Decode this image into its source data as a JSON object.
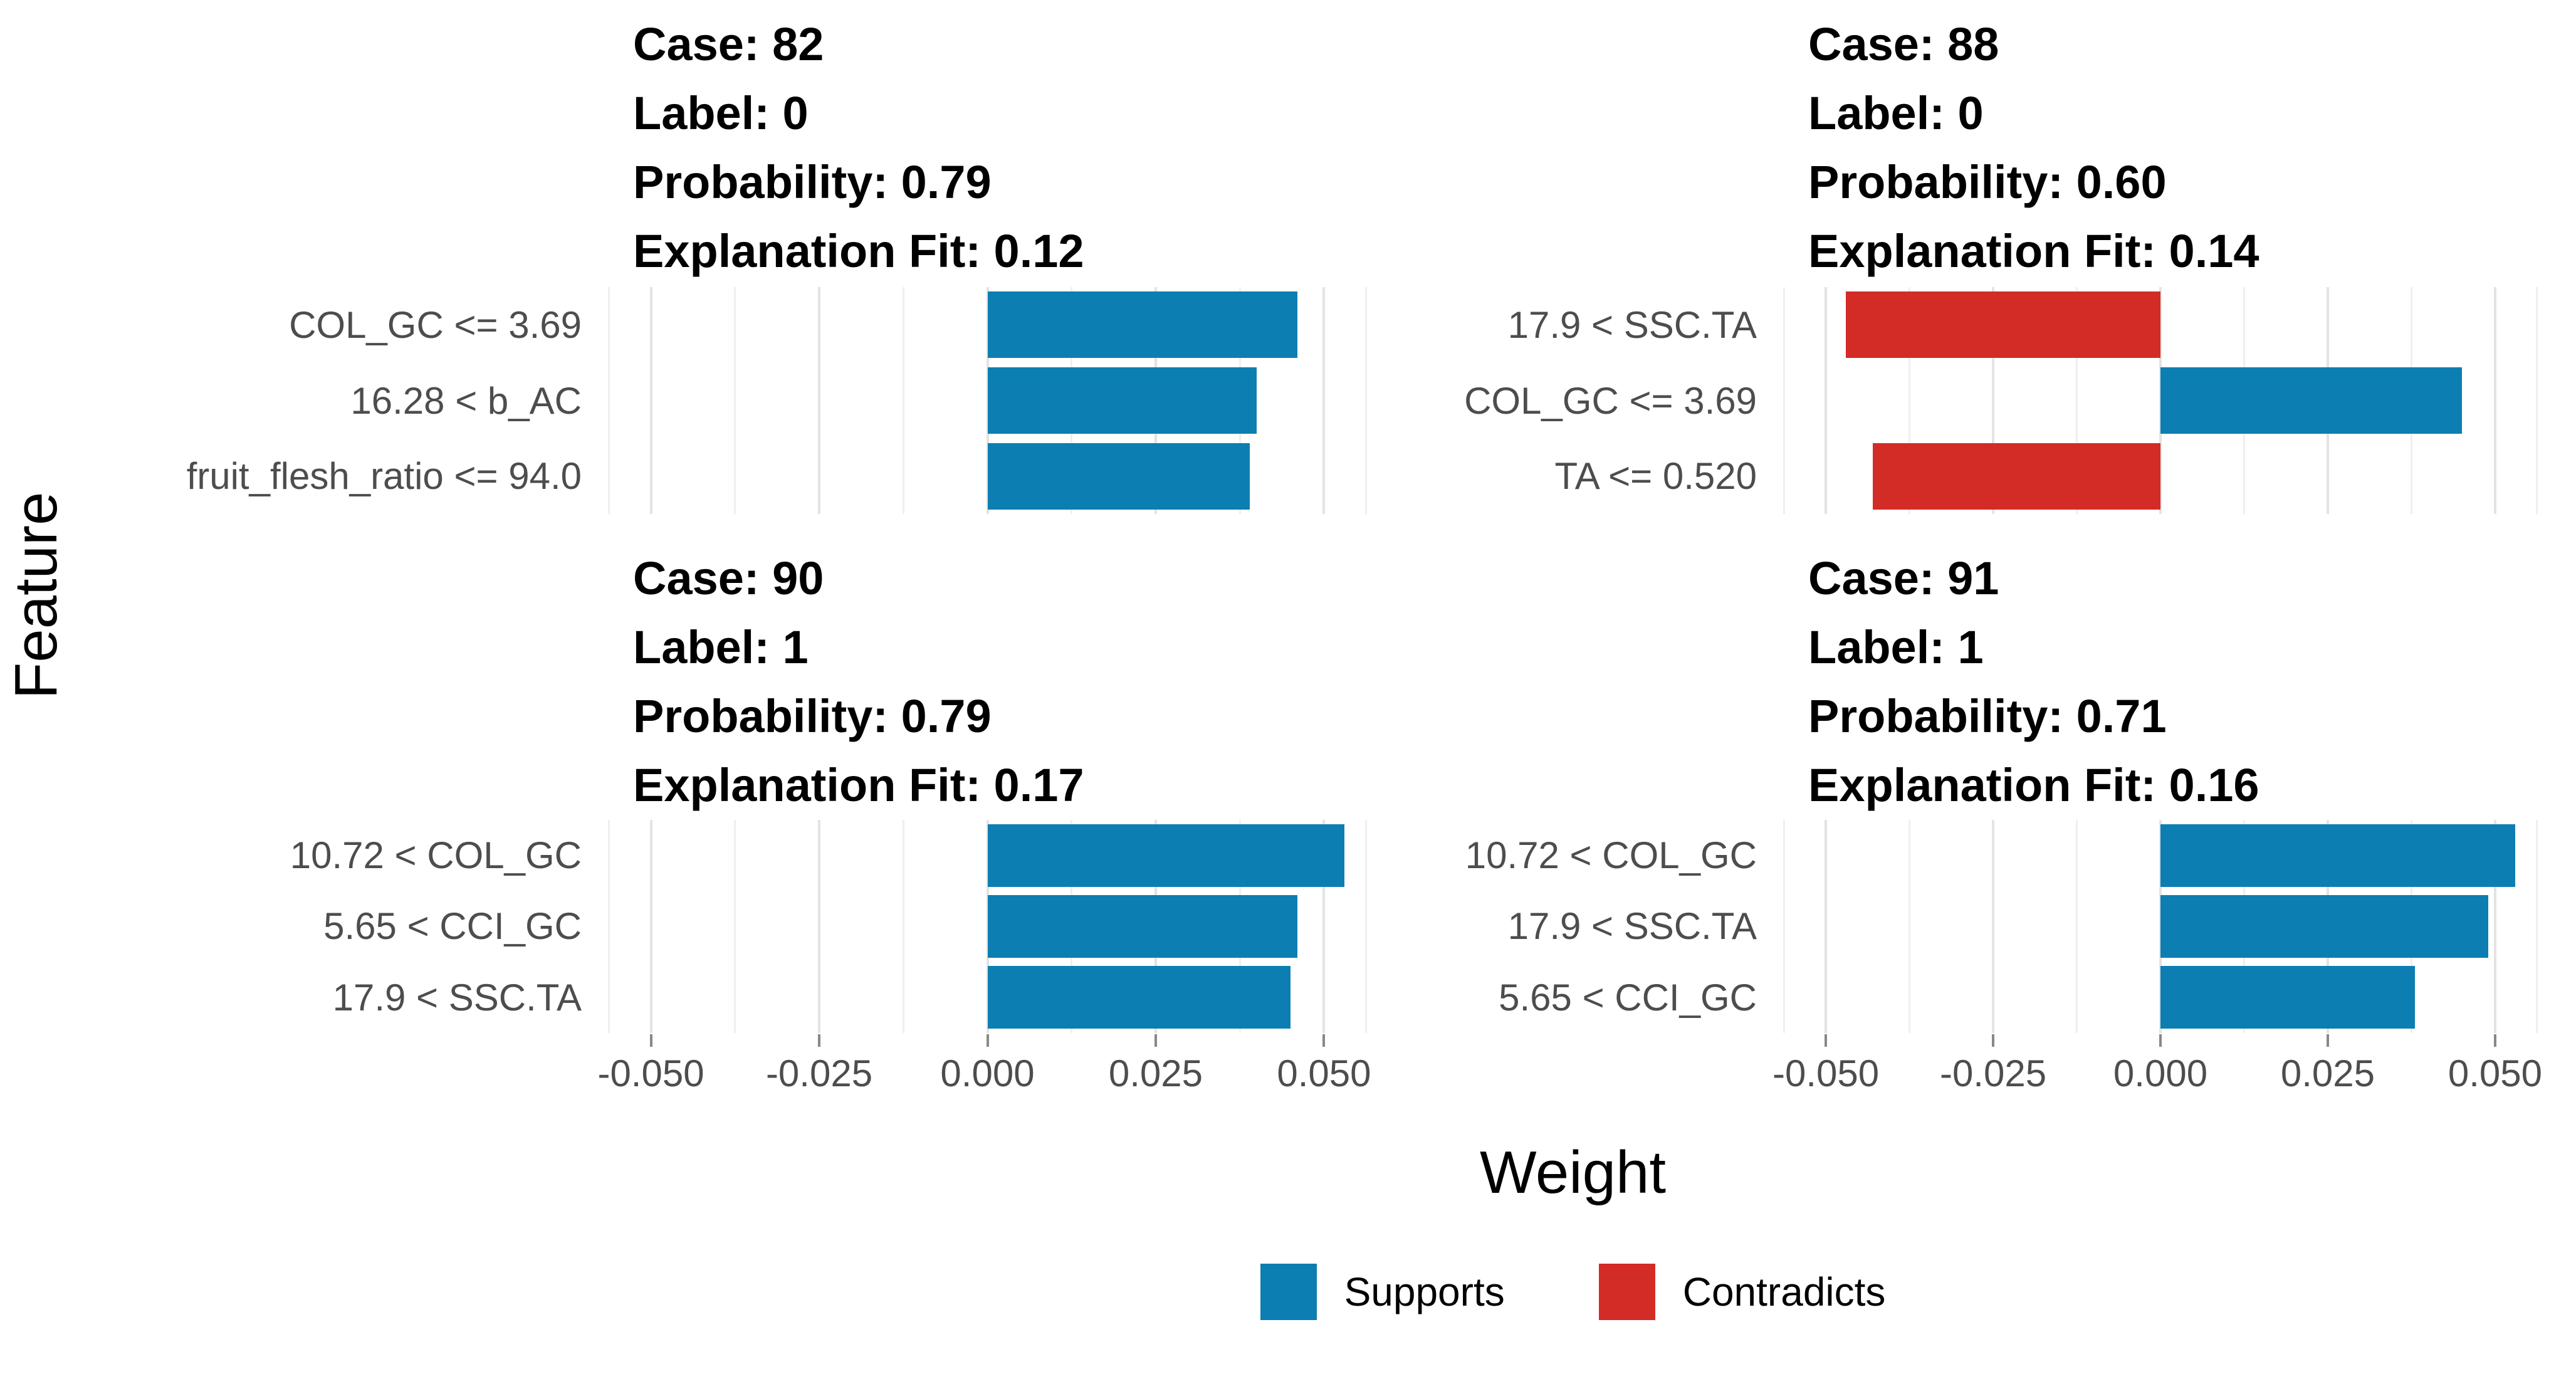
{
  "chart_data": {
    "type": "bar",
    "orientation": "horizontal",
    "title": "",
    "xlabel": "Weight",
    "ylabel": "Feature",
    "xlim": [
      -0.0575,
      0.0575
    ],
    "grid": true,
    "x_ticks": [
      -0.05,
      -0.025,
      0.0,
      0.025,
      0.05
    ],
    "x_tick_labels": [
      "-0.050",
      "-0.025",
      "0.000",
      "0.025",
      "0.050"
    ],
    "x_minor_ticks": [
      -0.05625,
      -0.0375,
      -0.0125,
      0.0125,
      0.0375,
      0.05625
    ],
    "colors": {
      "supports": "#0c7eb2",
      "contradicts": "#d32b26"
    },
    "legend_position": "bottom",
    "legend": [
      {
        "label": "Supports",
        "color": "#0c7eb2"
      },
      {
        "label": "Contradicts",
        "color": "#d32b26"
      }
    ],
    "facets": [
      {
        "case": "82",
        "label": "0",
        "probability": "0.79",
        "explanation_fit": "0.12",
        "header_lines": [
          "Case: 82",
          "Label: 0",
          "Probability: 0.79",
          "Explanation Fit: 0.12"
        ],
        "bars": [
          {
            "feature": "COL_GC <= 3.69",
            "weight": 0.046,
            "role": "supports"
          },
          {
            "feature": "16.28 < b_AC",
            "weight": 0.04,
            "role": "supports"
          },
          {
            "feature": "fruit_flesh_ratio <= 94.0",
            "weight": 0.039,
            "role": "supports"
          }
        ]
      },
      {
        "case": "88",
        "label": "0",
        "probability": "0.60",
        "explanation_fit": "0.14",
        "header_lines": [
          "Case: 88",
          "Label: 0",
          "Probability: 0.60",
          "Explanation Fit: 0.14"
        ],
        "bars": [
          {
            "feature": "17.9 < SSC.TA",
            "weight": -0.047,
            "role": "contradicts"
          },
          {
            "feature": "COL_GC <= 3.69",
            "weight": 0.045,
            "role": "supports"
          },
          {
            "feature": "TA <= 0.520",
            "weight": -0.043,
            "role": "contradicts"
          }
        ]
      },
      {
        "case": "90",
        "label": "1",
        "probability": "0.79",
        "explanation_fit": "0.17",
        "header_lines": [
          "Case: 90",
          "Label: 1",
          "Probability: 0.79",
          "Explanation Fit: 0.17"
        ],
        "bars": [
          {
            "feature": "10.72 < COL_GC",
            "weight": 0.053,
            "role": "supports"
          },
          {
            "feature": "5.65 < CCI_GC",
            "weight": 0.046,
            "role": "supports"
          },
          {
            "feature": "17.9 < SSC.TA",
            "weight": 0.045,
            "role": "supports"
          }
        ]
      },
      {
        "case": "91",
        "label": "1",
        "probability": "0.71",
        "explanation_fit": "0.16",
        "header_lines": [
          "Case: 91",
          "Label: 1",
          "Probability: 0.71",
          "Explanation Fit: 0.16"
        ],
        "bars": [
          {
            "feature": "10.72 < COL_GC",
            "weight": 0.053,
            "role": "supports"
          },
          {
            "feature": "17.9 < SSC.TA",
            "weight": 0.049,
            "role": "supports"
          },
          {
            "feature": "5.65 < CCI_GC",
            "weight": 0.038,
            "role": "supports"
          }
        ]
      }
    ]
  }
}
